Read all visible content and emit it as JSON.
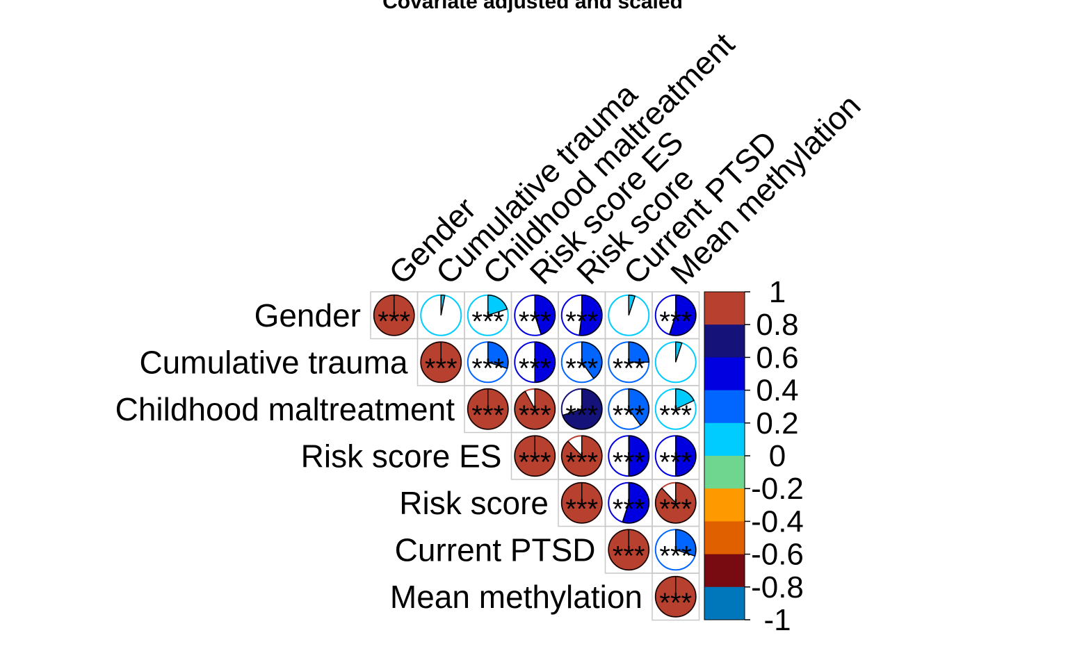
{
  "chart_data": {
    "type": "heatmap",
    "title": "Covariate adjusted and scaled",
    "variables": [
      "Gender",
      "Cumulative trauma",
      "Childhood maltreatment",
      "Risk score ES",
      "Risk score",
      "Current PTSD",
      "Mean methylation"
    ],
    "matrix": [
      [
        1.0,
        0.03,
        0.2,
        0.45,
        0.52,
        0.05,
        0.55
      ],
      [
        null,
        1.0,
        0.3,
        0.5,
        0.4,
        0.25,
        0.05
      ],
      [
        null,
        null,
        1.0,
        0.92,
        0.7,
        0.4,
        0.18
      ],
      [
        null,
        null,
        null,
        1.0,
        0.88,
        0.5,
        0.5
      ],
      [
        null,
        null,
        null,
        null,
        1.0,
        0.55,
        0.88
      ],
      [
        null,
        null,
        null,
        null,
        null,
        1.0,
        0.3
      ],
      [
        null,
        null,
        null,
        null,
        null,
        null,
        1.0
      ]
    ],
    "significance": [
      [
        "***",
        "",
        "***",
        "***",
        "***",
        "",
        "***"
      ],
      [
        null,
        "***",
        "***",
        "***",
        "***",
        "***",
        ""
      ],
      [
        null,
        null,
        "***",
        "***",
        "***",
        "***",
        "***"
      ],
      [
        null,
        null,
        null,
        "***",
        "***",
        "***",
        "***"
      ],
      [
        null,
        null,
        null,
        null,
        "***",
        "***",
        "***"
      ],
      [
        null,
        null,
        null,
        null,
        null,
        "***",
        "***"
      ],
      [
        null,
        null,
        null,
        null,
        null,
        null,
        "***"
      ]
    ],
    "colorbar": {
      "range": [
        -1,
        1
      ],
      "ticks": [
        "1",
        "0.8",
        "0.6",
        "0.4",
        "0.2",
        "0",
        "-0.2",
        "-0.4",
        "-0.6",
        "-0.8",
        "-1"
      ],
      "colors_top_to_bottom": [
        "#b8402e",
        "#15127a",
        "#0000e0",
        "#0066ff",
        "#00ccff",
        "#6fd690",
        "#ff9900",
        "#e06000",
        "#780a12",
        "#0077bb"
      ]
    },
    "legend": "right",
    "grid": true
  }
}
